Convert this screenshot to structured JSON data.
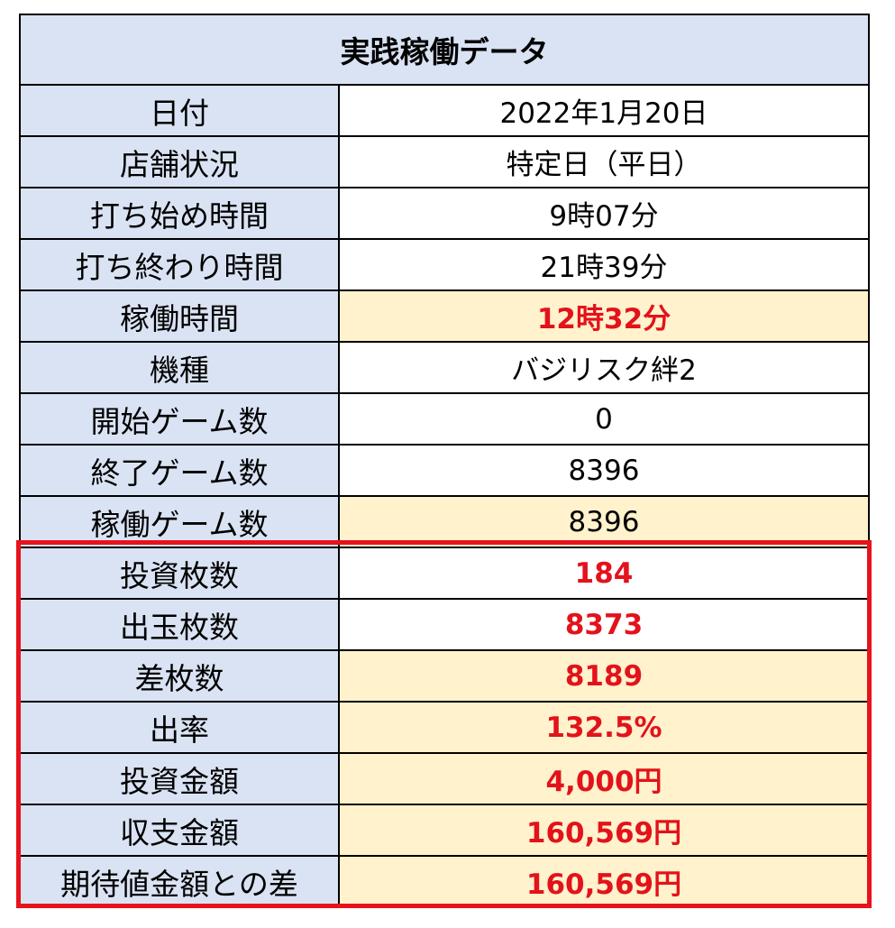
{
  "table": {
    "title": "実践稼働データ",
    "rows": [
      {
        "label": "日付",
        "value": "2022年1月20日"
      },
      {
        "label": "店舗状況",
        "value": "特定日（平日）"
      },
      {
        "label": "打ち始め時間",
        "value": "9時07分"
      },
      {
        "label": "打ち終わり時間",
        "value": "21時39分"
      },
      {
        "label": "稼働時間",
        "value": "12時32分"
      },
      {
        "label": "機種",
        "value": "バジリスク絆2"
      },
      {
        "label": "開始ゲーム数",
        "value": "0"
      },
      {
        "label": "終了ゲーム数",
        "value": "8396"
      },
      {
        "label": "稼働ゲーム数",
        "value": "8396"
      },
      {
        "label": "投資枚数",
        "value": "184"
      },
      {
        "label": "出玉枚数",
        "value": "8373"
      },
      {
        "label": "差枚数",
        "value": "8189"
      },
      {
        "label": "出率",
        "value": "132.5%"
      },
      {
        "label": "投資金額",
        "value": "4,000円"
      },
      {
        "label": "収支金額",
        "value": "160,569円"
      },
      {
        "label": "期待値金額との差",
        "value": "160,569円"
      }
    ]
  },
  "colors": {
    "label_bg": "#dae3f3",
    "highlight_bg": "#fff2cc",
    "emphasis_text": "#e3121b",
    "box_border": "#e8121c"
  }
}
